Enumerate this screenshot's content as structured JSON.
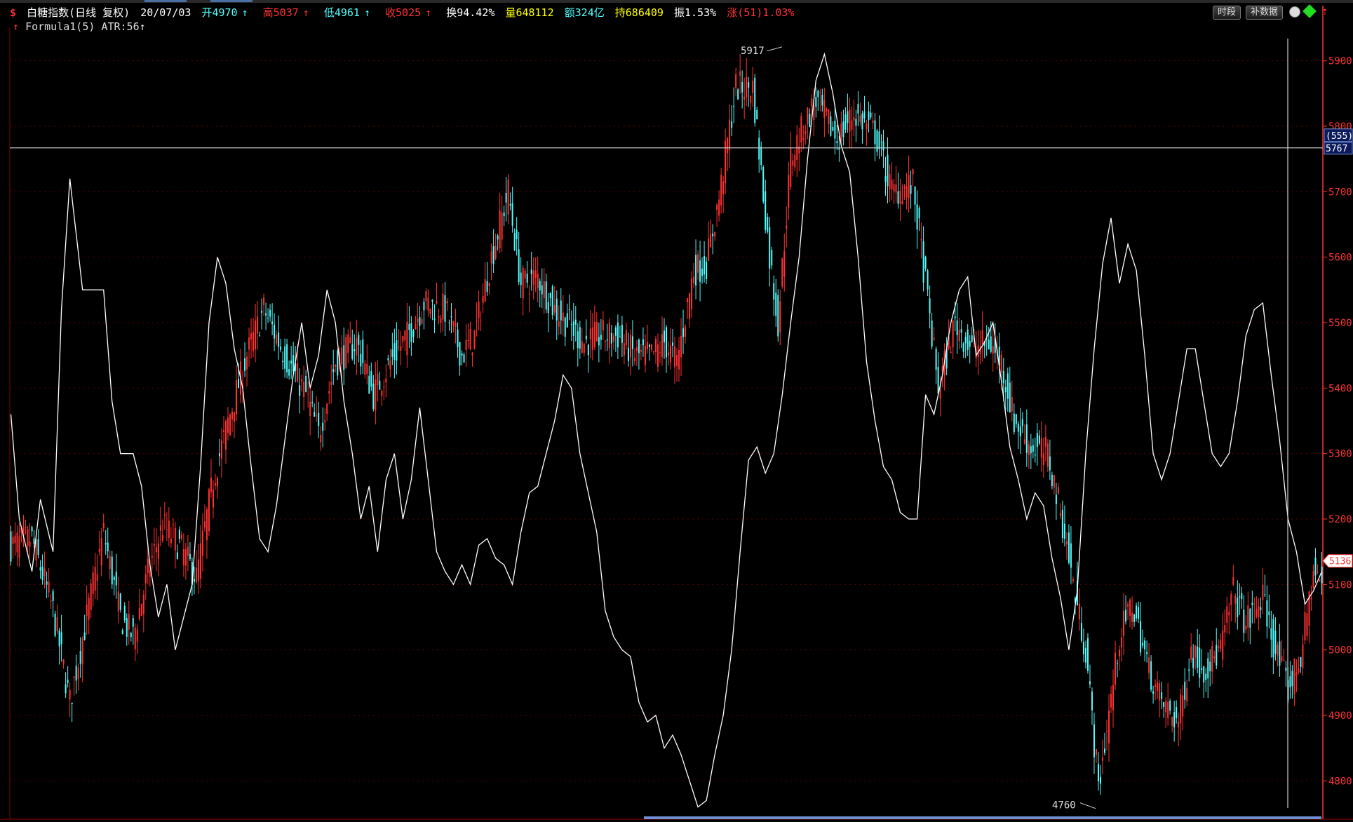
{
  "header": {
    "symbol_icon": "dollar-sign-icon",
    "name": "白糖指数(日线 复权)",
    "date": "20/07/03",
    "open": "开4970",
    "high": "高5037",
    "low": "低4961",
    "close": "收5025",
    "turnover": "换94.42%",
    "volume": "量648112",
    "amount": "额324亿",
    "position": "持686409",
    "amplitude": "振1.53%",
    "change": "涨(51)1.03%"
  },
  "formula": {
    "label": "Formula1(5)",
    "atr": "ATR:56"
  },
  "buttons": {
    "time_share": "时段",
    "supplement": "补数据"
  },
  "colors": {
    "up": "#ff3232",
    "down": "#54fcfc",
    "line": "#ffffff",
    "axis": "#ff3232",
    "bg": "#000000"
  },
  "chart_data": {
    "type": "candlestick",
    "y_ticks": [
      "5900",
      "5800",
      "5700",
      "5600",
      "5500",
      "5400",
      "5300",
      "5200",
      "5100",
      "5000",
      "4900",
      "4800"
    ],
    "ylim": [
      4750,
      5950
    ],
    "high_marker": "5917",
    "low_marker": "4760",
    "crosshair_value": "5767",
    "crosshair_sub": "(555)",
    "last_price": "5136",
    "series": [
      {
        "name": "price",
        "anchors": [
          [
            0,
            5160
          ],
          [
            10,
            5170
          ],
          [
            20,
            5060
          ],
          [
            28,
            4920
          ],
          [
            36,
            5050
          ],
          [
            44,
            5180
          ],
          [
            52,
            5050
          ],
          [
            58,
            5020
          ],
          [
            66,
            5130
          ],
          [
            72,
            5190
          ],
          [
            80,
            5160
          ],
          [
            88,
            5110
          ],
          [
            96,
            5260
          ],
          [
            104,
            5360
          ],
          [
            112,
            5450
          ],
          [
            120,
            5520
          ],
          [
            130,
            5450
          ],
          [
            140,
            5390
          ],
          [
            146,
            5330
          ],
          [
            154,
            5440
          ],
          [
            164,
            5470
          ],
          [
            172,
            5390
          ],
          [
            180,
            5440
          ],
          [
            188,
            5480
          ],
          [
            196,
            5530
          ],
          [
            206,
            5520
          ],
          [
            214,
            5450
          ],
          [
            220,
            5480
          ],
          [
            228,
            5600
          ],
          [
            236,
            5700
          ],
          [
            242,
            5560
          ],
          [
            250,
            5570
          ],
          [
            258,
            5520
          ],
          [
            264,
            5500
          ],
          [
            272,
            5470
          ],
          [
            280,
            5480
          ],
          [
            288,
            5480
          ],
          [
            296,
            5450
          ],
          [
            304,
            5450
          ],
          [
            310,
            5470
          ],
          [
            316,
            5440
          ],
          [
            324,
            5580
          ],
          [
            330,
            5590
          ],
          [
            336,
            5690
          ],
          [
            344,
            5860
          ],
          [
            352,
            5860
          ],
          [
            360,
            5600
          ],
          [
            364,
            5500
          ],
          [
            370,
            5750
          ],
          [
            376,
            5800
          ],
          [
            382,
            5840
          ],
          [
            392,
            5780
          ],
          [
            400,
            5820
          ],
          [
            410,
            5790
          ],
          [
            418,
            5700
          ],
          [
            428,
            5710
          ],
          [
            434,
            5560
          ],
          [
            440,
            5400
          ],
          [
            448,
            5500
          ],
          [
            456,
            5460
          ],
          [
            464,
            5470
          ],
          [
            470,
            5440
          ],
          [
            476,
            5350
          ],
          [
            484,
            5310
          ],
          [
            492,
            5300
          ],
          [
            500,
            5180
          ],
          [
            504,
            5100
          ],
          [
            510,
            5000
          ],
          [
            516,
            4790
          ],
          [
            520,
            4880
          ],
          [
            526,
            5020
          ],
          [
            532,
            5070
          ],
          [
            540,
            4970
          ],
          [
            546,
            4920
          ],
          [
            554,
            4890
          ],
          [
            560,
            5000
          ],
          [
            566,
            4970
          ],
          [
            574,
            5000
          ],
          [
            580,
            5090
          ],
          [
            586,
            5040
          ],
          [
            594,
            5080
          ],
          [
            600,
            5000
          ],
          [
            606,
            4940
          ],
          [
            612,
            4990
          ],
          [
            618,
            5120
          ],
          [
            622,
            5100
          ]
        ]
      },
      {
        "name": "atr",
        "anchors": [
          [
            0,
            5360
          ],
          [
            4,
            5200
          ],
          [
            10,
            5120
          ],
          [
            14,
            5230
          ],
          [
            20,
            5150
          ],
          [
            24,
            5520
          ],
          [
            28,
            5720
          ],
          [
            34,
            5550
          ],
          [
            40,
            5550
          ],
          [
            44,
            5550
          ],
          [
            48,
            5380
          ],
          [
            52,
            5300
          ],
          [
            58,
            5300
          ],
          [
            62,
            5250
          ],
          [
            66,
            5130
          ],
          [
            70,
            5050
          ],
          [
            74,
            5100
          ],
          [
            78,
            5000
          ],
          [
            82,
            5050
          ],
          [
            86,
            5100
          ],
          [
            90,
            5280
          ],
          [
            94,
            5500
          ],
          [
            98,
            5600
          ],
          [
            102,
            5560
          ],
          [
            106,
            5460
          ],
          [
            110,
            5400
          ],
          [
            114,
            5280
          ],
          [
            118,
            5170
          ],
          [
            122,
            5150
          ],
          [
            126,
            5220
          ],
          [
            130,
            5320
          ],
          [
            134,
            5420
          ],
          [
            138,
            5500
          ],
          [
            142,
            5400
          ],
          [
            146,
            5450
          ],
          [
            150,
            5550
          ],
          [
            154,
            5500
          ],
          [
            158,
            5380
          ],
          [
            162,
            5300
          ],
          [
            166,
            5200
          ],
          [
            170,
            5250
          ],
          [
            174,
            5150
          ],
          [
            178,
            5260
          ],
          [
            182,
            5300
          ],
          [
            186,
            5200
          ],
          [
            190,
            5260
          ],
          [
            194,
            5370
          ],
          [
            198,
            5260
          ],
          [
            202,
            5150
          ],
          [
            206,
            5120
          ],
          [
            210,
            5100
          ],
          [
            214,
            5130
          ],
          [
            218,
            5100
          ],
          [
            222,
            5160
          ],
          [
            226,
            5170
          ],
          [
            230,
            5140
          ],
          [
            234,
            5130
          ],
          [
            238,
            5100
          ],
          [
            242,
            5180
          ],
          [
            246,
            5240
          ],
          [
            250,
            5250
          ],
          [
            254,
            5300
          ],
          [
            258,
            5350
          ],
          [
            262,
            5420
          ],
          [
            266,
            5400
          ],
          [
            270,
            5300
          ],
          [
            274,
            5240
          ],
          [
            278,
            5180
          ],
          [
            282,
            5060
          ],
          [
            286,
            5020
          ],
          [
            290,
            5000
          ],
          [
            294,
            4990
          ],
          [
            298,
            4920
          ],
          [
            302,
            4890
          ],
          [
            306,
            4900
          ],
          [
            310,
            4850
          ],
          [
            314,
            4870
          ],
          [
            318,
            4840
          ],
          [
            322,
            4800
          ],
          [
            326,
            4760
          ],
          [
            330,
            4770
          ],
          [
            334,
            4840
          ],
          [
            338,
            4900
          ],
          [
            342,
            5000
          ],
          [
            346,
            5150
          ],
          [
            350,
            5290
          ],
          [
            354,
            5310
          ],
          [
            358,
            5270
          ],
          [
            362,
            5300
          ],
          [
            366,
            5390
          ],
          [
            370,
            5500
          ],
          [
            374,
            5600
          ],
          [
            378,
            5750
          ],
          [
            382,
            5870
          ],
          [
            386,
            5910
          ],
          [
            390,
            5850
          ],
          [
            394,
            5770
          ],
          [
            398,
            5730
          ],
          [
            402,
            5600
          ],
          [
            406,
            5440
          ],
          [
            410,
            5350
          ],
          [
            414,
            5280
          ],
          [
            418,
            5260
          ],
          [
            422,
            5210
          ],
          [
            426,
            5200
          ],
          [
            430,
            5200
          ],
          [
            434,
            5390
          ],
          [
            438,
            5360
          ],
          [
            442,
            5420
          ],
          [
            446,
            5500
          ],
          [
            450,
            5550
          ],
          [
            454,
            5570
          ],
          [
            458,
            5450
          ],
          [
            462,
            5470
          ],
          [
            466,
            5500
          ],
          [
            470,
            5410
          ],
          [
            474,
            5310
          ],
          [
            478,
            5260
          ],
          [
            482,
            5200
          ],
          [
            486,
            5240
          ],
          [
            490,
            5220
          ],
          [
            494,
            5140
          ],
          [
            498,
            5080
          ],
          [
            502,
            5000
          ],
          [
            506,
            5090
          ],
          [
            510,
            5300
          ],
          [
            514,
            5460
          ],
          [
            518,
            5590
          ],
          [
            522,
            5660
          ],
          [
            526,
            5560
          ],
          [
            530,
            5620
          ],
          [
            534,
            5580
          ],
          [
            538,
            5450
          ],
          [
            542,
            5300
          ],
          [
            546,
            5260
          ],
          [
            550,
            5300
          ],
          [
            554,
            5380
          ],
          [
            558,
            5460
          ],
          [
            562,
            5460
          ],
          [
            566,
            5380
          ],
          [
            570,
            5300
          ],
          [
            574,
            5280
          ],
          [
            578,
            5300
          ],
          [
            582,
            5380
          ],
          [
            586,
            5480
          ],
          [
            590,
            5520
          ],
          [
            594,
            5530
          ],
          [
            598,
            5420
          ],
          [
            602,
            5320
          ],
          [
            606,
            5200
          ],
          [
            610,
            5150
          ],
          [
            614,
            5070
          ],
          [
            618,
            5090
          ],
          [
            622,
            5120
          ]
        ]
      }
    ],
    "candle_count": 623
  }
}
